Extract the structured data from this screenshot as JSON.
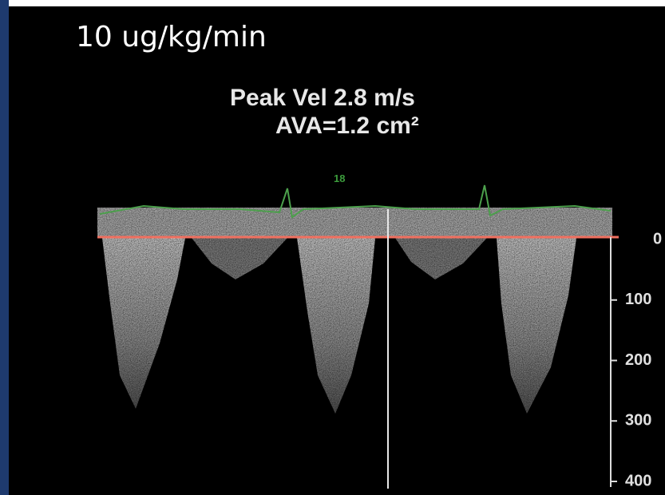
{
  "header": {
    "dose": "10 ug/kg/min"
  },
  "measurements": {
    "peak_velocity": "Peak Vel 2.8 m/s",
    "ava": "AVA=1.2 cm²"
  },
  "heart_rate": "18",
  "scale": {
    "labels": [
      "0",
      "100",
      "200",
      "300",
      "400"
    ]
  }
}
